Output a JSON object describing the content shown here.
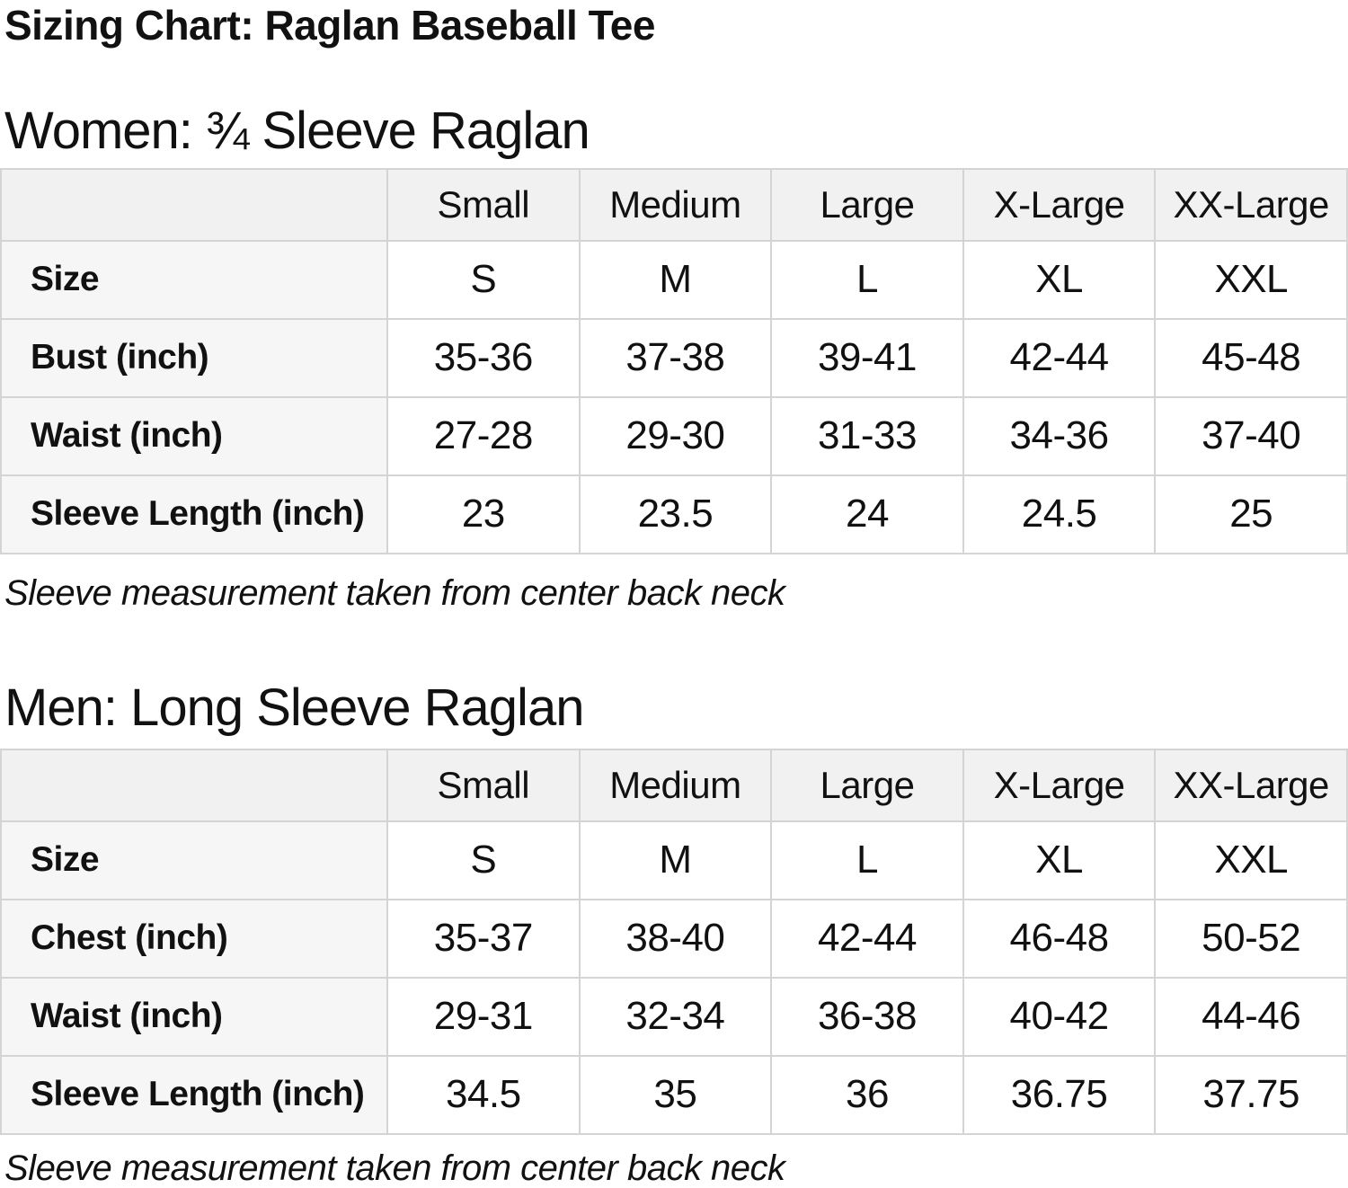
{
  "page": {
    "title": "Sizing Chart: Raglan Baseball Tee"
  },
  "colors": {
    "header_bg": "#f1f1f1",
    "label_bg": "#f6f6f6",
    "border": "#d4d4d4",
    "text": "#111111"
  },
  "sections": [
    {
      "id": "women",
      "heading": "Women: ¾ Sleeve Raglan",
      "note": "Sleeve measurement taken from center back neck",
      "table": {
        "type": "table",
        "columns": [
          "",
          "Small",
          "Medium",
          "Large",
          "X-Large",
          "XX-Large"
        ],
        "rows": [
          {
            "label": "Size",
            "values": [
              "S",
              "M",
              "L",
              "XL",
              "XXL"
            ]
          },
          {
            "label": "Bust (inch)",
            "values": [
              "35-36",
              "37-38",
              "39-41",
              "42-44",
              "45-48"
            ]
          },
          {
            "label": "Waist (inch)",
            "values": [
              "27-28",
              "29-30",
              "31-33",
              "34-36",
              "37-40"
            ]
          },
          {
            "label": "Sleeve Length (inch)",
            "values": [
              "23",
              "23.5",
              "24",
              "24.5",
              "25"
            ]
          }
        ]
      }
    },
    {
      "id": "men",
      "heading": "Men: Long Sleeve Raglan",
      "note": "Sleeve measurement taken from center back neck",
      "table": {
        "type": "table",
        "columns": [
          "",
          "Small",
          "Medium",
          "Large",
          "X-Large",
          "XX-Large"
        ],
        "rows": [
          {
            "label": "Size",
            "values": [
              "S",
              "M",
              "L",
              "XL",
              "XXL"
            ]
          },
          {
            "label": "Chest (inch)",
            "values": [
              "35-37",
              "38-40",
              "42-44",
              "46-48",
              "50-52"
            ]
          },
          {
            "label": "Waist (inch)",
            "values": [
              "29-31",
              "32-34",
              "36-38",
              "40-42",
              "44-46"
            ]
          },
          {
            "label": "Sleeve Length (inch)",
            "values": [
              "34.5",
              "35",
              "36",
              "36.75",
              "37.75"
            ]
          }
        ]
      }
    }
  ]
}
